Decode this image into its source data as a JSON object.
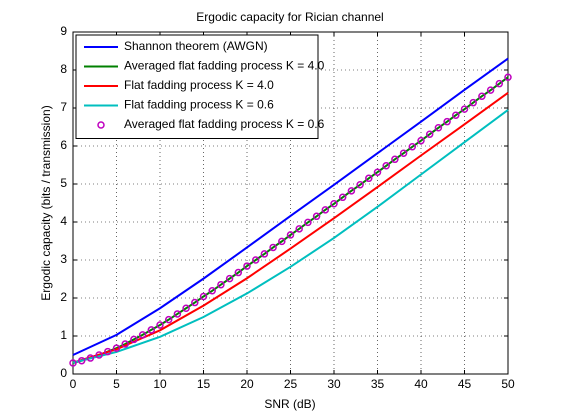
{
  "chart_data": {
    "type": "line",
    "title": "Ergodic capacity for Rician channel",
    "x_label": "SNR (dB)",
    "y_label": "Ergodic capacity (bits / transmission)",
    "xlim": [
      0,
      50
    ],
    "ylim": [
      0,
      9
    ],
    "xticks": [
      0,
      5,
      10,
      15,
      20,
      25,
      30,
      35,
      40,
      45,
      50
    ],
    "yticks": [
      0,
      1,
      2,
      3,
      4,
      5,
      6,
      7,
      8,
      9
    ],
    "grid": true,
    "legend": "upper left",
    "series": [
      {
        "name": "Shannon theorem (AWGN)",
        "color": "#0000ff",
        "x": [
          0,
          5,
          10,
          15,
          20,
          25,
          30,
          35,
          40,
          45,
          50
        ],
        "values": [
          0.5,
          1.03,
          1.73,
          2.51,
          3.33,
          4.16,
          4.98,
          5.81,
          6.64,
          7.48,
          8.3
        ]
      },
      {
        "name": "Averaged flat fadding process K = 4.0",
        "color": "#008000",
        "x": [
          0,
          1,
          2,
          3,
          4,
          5,
          6,
          7,
          8,
          9,
          10,
          11,
          12,
          13,
          14,
          15,
          16,
          17,
          18,
          19,
          20,
          21,
          22,
          23,
          24,
          25,
          26,
          27,
          28,
          29,
          30,
          31,
          32,
          33,
          34,
          35,
          36,
          37,
          38,
          39,
          40,
          41,
          42,
          43,
          44,
          45,
          46,
          47,
          48,
          49,
          50
        ],
        "values": [
          0.29,
          0.35,
          0.42,
          0.5,
          0.59,
          0.68,
          0.79,
          0.91,
          1.03,
          1.16,
          1.29,
          1.43,
          1.58,
          1.73,
          1.88,
          2.04,
          2.19,
          2.35,
          2.51,
          2.67,
          2.84,
          3.0,
          3.16,
          3.33,
          3.49,
          3.66,
          3.82,
          3.99,
          4.15,
          4.32,
          4.48,
          4.65,
          4.82,
          4.98,
          5.15,
          5.31,
          5.48,
          5.65,
          5.81,
          5.98,
          6.14,
          6.31,
          6.48,
          6.64,
          6.81,
          6.97,
          7.14,
          7.31,
          7.47,
          7.64,
          7.81
        ]
      },
      {
        "name": "Flat fadding process K = 4.0",
        "color": "#ff0000",
        "x": [
          0,
          5,
          10,
          15,
          20,
          25,
          30,
          35,
          40,
          45,
          50
        ],
        "values": [
          0.3,
          0.65,
          1.15,
          1.8,
          2.52,
          3.3,
          4.1,
          4.92,
          5.75,
          6.57,
          7.4
        ]
      },
      {
        "name": "Flat fadding process K = 0.6",
        "color": "#00bfbf",
        "x": [
          0,
          5,
          10,
          15,
          20,
          25,
          30,
          35,
          40,
          45,
          50
        ],
        "values": [
          0.3,
          0.58,
          0.98,
          1.5,
          2.12,
          2.82,
          3.58,
          4.4,
          5.25,
          6.1,
          6.95
        ]
      },
      {
        "name": "Averaged flat fadding process K = 0.6",
        "color": "#bf00bf",
        "marker": "o",
        "linestyle": "none",
        "x": [
          0,
          1,
          2,
          3,
          4,
          5,
          6,
          7,
          8,
          9,
          10,
          11,
          12,
          13,
          14,
          15,
          16,
          17,
          18,
          19,
          20,
          21,
          22,
          23,
          24,
          25,
          26,
          27,
          28,
          29,
          30,
          31,
          32,
          33,
          34,
          35,
          36,
          37,
          38,
          39,
          40,
          41,
          42,
          43,
          44,
          45,
          46,
          47,
          48,
          49,
          50
        ],
        "values": [
          0.29,
          0.35,
          0.42,
          0.5,
          0.59,
          0.68,
          0.79,
          0.91,
          1.03,
          1.16,
          1.29,
          1.43,
          1.58,
          1.73,
          1.88,
          2.04,
          2.19,
          2.35,
          2.51,
          2.67,
          2.84,
          3.0,
          3.16,
          3.33,
          3.49,
          3.66,
          3.82,
          3.99,
          4.15,
          4.32,
          4.48,
          4.65,
          4.82,
          4.98,
          5.15,
          5.31,
          5.48,
          5.65,
          5.81,
          5.98,
          6.14,
          6.31,
          6.48,
          6.64,
          6.81,
          6.97,
          7.14,
          7.31,
          7.47,
          7.64,
          7.81
        ]
      }
    ]
  }
}
